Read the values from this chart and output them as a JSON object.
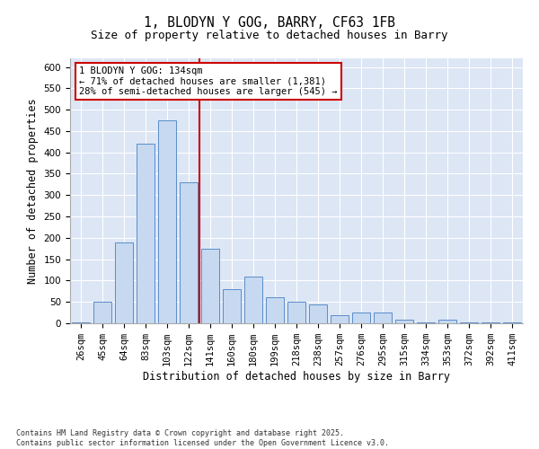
{
  "title_line1": "1, BLODYN Y GOG, BARRY, CF63 1FB",
  "title_line2": "Size of property relative to detached houses in Barry",
  "xlabel": "Distribution of detached houses by size in Barry",
  "ylabel": "Number of detached properties",
  "categories": [
    "26sqm",
    "45sqm",
    "64sqm",
    "83sqm",
    "103sqm",
    "122sqm",
    "141sqm",
    "160sqm",
    "180sqm",
    "199sqm",
    "218sqm",
    "238sqm",
    "257sqm",
    "276sqm",
    "295sqm",
    "315sqm",
    "334sqm",
    "353sqm",
    "372sqm",
    "392sqm",
    "411sqm"
  ],
  "values": [
    3,
    50,
    190,
    420,
    475,
    330,
    175,
    80,
    110,
    60,
    50,
    45,
    18,
    25,
    25,
    8,
    3,
    8,
    3,
    3,
    3
  ],
  "bar_color": "#c6d9f0",
  "bar_edge_color": "#5b8dc8",
  "vline_x": 5.5,
  "vline_color": "#cc0000",
  "annotation_text": "1 BLODYN Y GOG: 134sqm\n← 71% of detached houses are smaller (1,381)\n28% of semi-detached houses are larger (545) →",
  "annotation_box_color": "#ffffff",
  "annotation_box_edge": "#cc0000",
  "ylim": [
    0,
    620
  ],
  "yticks": [
    0,
    50,
    100,
    150,
    200,
    250,
    300,
    350,
    400,
    450,
    500,
    550,
    600
  ],
  "background_color": "#dce6f5",
  "footer_text": "Contains HM Land Registry data © Crown copyright and database right 2025.\nContains public sector information licensed under the Open Government Licence v3.0.",
  "title_fontsize": 10.5,
  "subtitle_fontsize": 9,
  "axis_label_fontsize": 8.5,
  "tick_fontsize": 7.5,
  "annotation_fontsize": 7.5,
  "footer_fontsize": 6.0
}
